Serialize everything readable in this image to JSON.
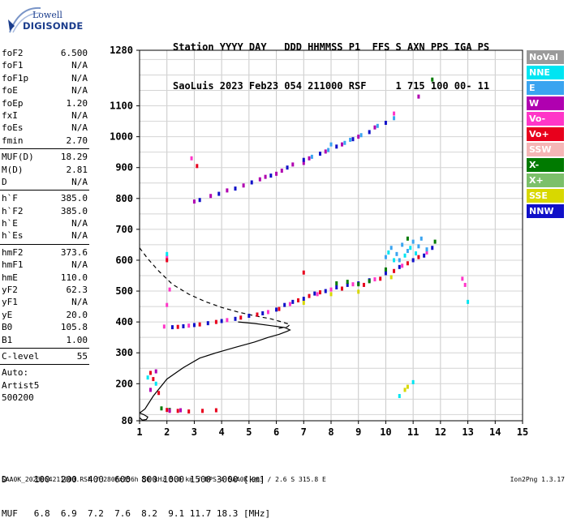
{
  "logo": {
    "line1": "Lowell",
    "line2": "DIGISONDE"
  },
  "header": {
    "labels": "Station YYYY DAY   DDD HHMMSS P1  FFS S AXN PPS IGA PS",
    "values": "SaoLuis 2023 Feb23 054 211000 RSF     1 715 100 00- 11"
  },
  "params": {
    "g1": [
      {
        "k": "foF2",
        "v": "6.500"
      },
      {
        "k": "foF1",
        "v": "N/A"
      },
      {
        "k": "foF1p",
        "v": "N/A"
      },
      {
        "k": "foE",
        "v": "N/A"
      },
      {
        "k": "foEp",
        "v": "1.20"
      },
      {
        "k": "fxI",
        "v": "N/A"
      },
      {
        "k": "foEs",
        "v": "N/A"
      },
      {
        "k": "fmin",
        "v": "2.70"
      }
    ],
    "g2": [
      {
        "k": "MUF(D)",
        "v": "18.29"
      },
      {
        "k": "M(D)",
        "v": "2.81"
      },
      {
        "k": "D",
        "v": "N/A"
      }
    ],
    "g3": [
      {
        "k": "h`F",
        "v": "385.0"
      },
      {
        "k": "h`F2",
        "v": "385.0"
      },
      {
        "k": "h`E",
        "v": "N/A"
      },
      {
        "k": "h`Es",
        "v": "N/A"
      }
    ],
    "g4": [
      {
        "k": "hmF2",
        "v": "373.6"
      },
      {
        "k": "hmF1",
        "v": "N/A"
      },
      {
        "k": "hmE",
        "v": "110.0"
      },
      {
        "k": "yF2",
        "v": "62.3"
      },
      {
        "k": "yF1",
        "v": "N/A"
      },
      {
        "k": "yE",
        "v": "20.0"
      },
      {
        "k": "B0",
        "v": "105.8"
      },
      {
        "k": "B1",
        "v": "1.00"
      }
    ],
    "g5": [
      {
        "k": "C-level",
        "v": "55"
      }
    ],
    "auto": [
      "Auto:",
      "Artist5",
      "500200"
    ]
  },
  "legend": [
    {
      "label": "NoVal",
      "color": "#9a9a9a"
    },
    {
      "label": "NNE",
      "color": "#00e5f2"
    },
    {
      "label": "E",
      "color": "#3aa4f0"
    },
    {
      "label": "W",
      "color": "#b000b0"
    },
    {
      "label": "Vo-",
      "color": "#ff36c8"
    },
    {
      "label": "Vo+",
      "color": "#e8001c"
    },
    {
      "label": "SSW",
      "color": "#f5b6b6"
    },
    {
      "label": "X-",
      "color": "#007a00"
    },
    {
      "label": "X+",
      "color": "#7cc06a"
    },
    {
      "label": "SSE",
      "color": "#d8d800"
    },
    {
      "label": "NNW",
      "color": "#1010c8"
    }
  ],
  "bottom": {
    "d_row": "D     100  200  400  600  800 1000 1500 3000 [km]",
    "muf_row": "MUF   6.8  6.9  7.2  7.6  8.2  9.1 11.7 18.3 [MHz]"
  },
  "footer": "SAA0K_2023054211000.RSF / 280fx256h 50 kHz 5.0 km / DPS-4 SAA0K 903 / 2.6 S 315.8 E",
  "version": "Ion2Png 1.3.17",
  "chart_data": {
    "type": "scatter",
    "xlim": [
      1,
      15
    ],
    "ylim": [
      80,
      1280
    ],
    "x_ticks": [
      1,
      2,
      3,
      4,
      5,
      6,
      7,
      8,
      9,
      10,
      11,
      12,
      13,
      14,
      15
    ],
    "y_ticks": [
      80,
      200,
      300,
      400,
      500,
      600,
      700,
      800,
      900,
      1000,
      1100,
      1280
    ],
    "grid": true,
    "legend_position": "right",
    "series": [
      {
        "color": "#1010c8",
        "values": [
          [
            2.2,
            383
          ],
          [
            2.6,
            386
          ],
          [
            3.0,
            390
          ],
          [
            3.5,
            396
          ],
          [
            4.0,
            403
          ],
          [
            4.5,
            410
          ],
          [
            5.0,
            420
          ],
          [
            5.5,
            428
          ],
          [
            6.0,
            440
          ],
          [
            6.3,
            455
          ],
          [
            6.6,
            465
          ],
          [
            7.0,
            475
          ],
          [
            7.4,
            492
          ],
          [
            7.8,
            500
          ],
          [
            8.2,
            512
          ],
          [
            8.6,
            520
          ],
          [
            9.0,
            525
          ],
          [
            9.4,
            535
          ],
          [
            10.0,
            558
          ],
          [
            10.5,
            578
          ],
          [
            11.0,
            600
          ],
          [
            11.4,
            615
          ],
          [
            11.7,
            640
          ]
        ]
      },
      {
        "color": "#e8001c",
        "values": [
          [
            2.4,
            384
          ],
          [
            3.2,
            392
          ],
          [
            3.8,
            400
          ],
          [
            4.7,
            414
          ],
          [
            5.3,
            424
          ],
          [
            6.1,
            442
          ],
          [
            6.8,
            470
          ],
          [
            7.2,
            484
          ],
          [
            7.6,
            496
          ],
          [
            8.4,
            508
          ],
          [
            9.2,
            520
          ],
          [
            9.8,
            540
          ],
          [
            10.3,
            565
          ],
          [
            10.8,
            590
          ],
          [
            11.2,
            610
          ]
        ]
      },
      {
        "color": "#ff36c8",
        "values": [
          [
            2.8,
            388
          ],
          [
            4.2,
            406
          ],
          [
            5.7,
            432
          ],
          [
            6.5,
            458
          ],
          [
            7.5,
            490
          ],
          [
            8.0,
            505
          ],
          [
            8.8,
            522
          ],
          [
            9.6,
            538
          ],
          [
            10.6,
            582
          ],
          [
            11.5,
            625
          ]
        ]
      },
      {
        "color": "#3aa4f0",
        "values": [
          [
            10.0,
            610
          ],
          [
            10.2,
            640
          ],
          [
            10.4,
            620
          ],
          [
            10.6,
            650
          ],
          [
            10.8,
            630
          ],
          [
            11.0,
            660
          ],
          [
            11.2,
            645
          ],
          [
            11.3,
            670
          ],
          [
            10.5,
            600
          ],
          [
            11.5,
            635
          ]
        ]
      },
      {
        "color": "#00e5f2",
        "values": [
          [
            10.1,
            625
          ],
          [
            10.3,
            600
          ],
          [
            10.7,
            615
          ],
          [
            10.9,
            640
          ],
          [
            11.1,
            622
          ]
        ]
      },
      {
        "color": "#007a00",
        "values": [
          [
            8.2,
            525
          ],
          [
            8.6,
            530
          ],
          [
            9.0,
            522
          ],
          [
            9.4,
            532
          ],
          [
            10.0,
            570
          ],
          [
            10.8,
            670
          ],
          [
            11.8,
            660
          ]
        ]
      },
      {
        "color": "#d8d800",
        "values": [
          [
            7.0,
            462
          ],
          [
            8.0,
            490
          ],
          [
            9.0,
            498
          ],
          [
            10.2,
            545
          ],
          [
            10.8,
            190
          ],
          [
            10.7,
            180
          ]
        ]
      },
      {
        "color": "#b000b0",
        "values": [
          [
            3.0,
            790
          ],
          [
            3.6,
            808
          ],
          [
            4.2,
            826
          ],
          [
            4.8,
            842
          ],
          [
            5.4,
            862
          ],
          [
            6.0,
            880
          ],
          [
            6.6,
            910
          ],
          [
            7.2,
            930
          ],
          [
            7.8,
            952
          ],
          [
            8.4,
            975
          ],
          [
            9.0,
            1000
          ],
          [
            9.6,
            1030
          ],
          [
            5.6,
            870
          ],
          [
            6.2,
            890
          ],
          [
            7.0,
            915
          ]
        ]
      },
      {
        "color": "#1010c8",
        "values": [
          [
            3.2,
            795
          ],
          [
            3.9,
            815
          ],
          [
            4.5,
            832
          ],
          [
            5.1,
            852
          ],
          [
            5.8,
            874
          ],
          [
            6.4,
            900
          ],
          [
            7.0,
            925
          ],
          [
            7.6,
            945
          ],
          [
            8.2,
            968
          ],
          [
            8.8,
            992
          ],
          [
            9.4,
            1015
          ],
          [
            10.0,
            1045
          ]
        ]
      },
      {
        "color": "#3aa4f0",
        "values": [
          [
            7.3,
            935
          ],
          [
            7.9,
            957
          ],
          [
            8.5,
            980
          ],
          [
            9.1,
            1005
          ],
          [
            9.7,
            1035
          ],
          [
            10.3,
            1060
          ],
          [
            8.0,
            975
          ],
          [
            8.7,
            990
          ]
        ]
      },
      {
        "color": "#ff36c8",
        "values": [
          [
            2.0,
            610
          ],
          [
            2.1,
            505
          ],
          [
            2.0,
            455
          ],
          [
            1.9,
            385
          ],
          [
            2.9,
            930
          ],
          [
            10.3,
            1075
          ],
          [
            12.8,
            540
          ],
          [
            12.9,
            520
          ]
        ]
      },
      {
        "color": "#e8001c",
        "values": [
          [
            1.4,
            235
          ],
          [
            1.5,
            215
          ],
          [
            1.7,
            170
          ],
          [
            2.0,
            115
          ],
          [
            2.4,
            112
          ],
          [
            2.8,
            110
          ],
          [
            3.3,
            112
          ],
          [
            3.8,
            114
          ],
          [
            2.0,
            600
          ],
          [
            3.1,
            905
          ],
          [
            7.0,
            560
          ]
        ]
      },
      {
        "color": "#00e5f2",
        "values": [
          [
            2.0,
            620
          ],
          [
            1.3,
            220
          ],
          [
            1.6,
            200
          ],
          [
            10.5,
            160
          ],
          [
            11.0,
            205
          ],
          [
            13.0,
            465
          ]
        ]
      },
      {
        "color": "#007a00",
        "values": [
          [
            11.7,
            1185
          ],
          [
            2.1,
            115
          ],
          [
            1.8,
            120
          ]
        ]
      },
      {
        "color": "#b000b0",
        "values": [
          [
            1.6,
            240
          ],
          [
            1.4,
            180
          ],
          [
            2.1,
            112
          ],
          [
            2.5,
            114
          ],
          [
            11.2,
            1130
          ]
        ]
      }
    ]
  },
  "profile": {
    "solid": [
      [
        1.0,
        105
      ],
      [
        1.2,
        118
      ],
      [
        1.5,
        160
      ],
      [
        2.0,
        215
      ],
      [
        2.6,
        252
      ],
      [
        3.2,
        283
      ],
      [
        3.8,
        300
      ],
      [
        4.5,
        318
      ],
      [
        5.2,
        335
      ],
      [
        5.7,
        350
      ],
      [
        6.1,
        360
      ],
      [
        6.4,
        370
      ],
      [
        6.5,
        374
      ],
      [
        6.3,
        382
      ],
      [
        5.8,
        388
      ],
      [
        5.2,
        395
      ],
      [
        4.6,
        400
      ]
    ],
    "solid_low": [
      [
        1.0,
        90
      ],
      [
        1.1,
        82
      ],
      [
        1.25,
        84
      ],
      [
        1.3,
        92
      ],
      [
        1.15,
        100
      ],
      [
        1.0,
        105
      ]
    ],
    "dashed": [
      [
        1.0,
        640
      ],
      [
        1.3,
        605
      ],
      [
        1.7,
        565
      ],
      [
        2.2,
        522
      ],
      [
        2.8,
        490
      ],
      [
        3.4,
        466
      ],
      [
        4.0,
        447
      ],
      [
        4.6,
        432
      ],
      [
        5.2,
        420
      ],
      [
        5.8,
        410
      ],
      [
        6.2,
        400
      ],
      [
        6.5,
        392
      ],
      [
        6.4,
        384
      ],
      [
        6.0,
        378
      ]
    ]
  }
}
